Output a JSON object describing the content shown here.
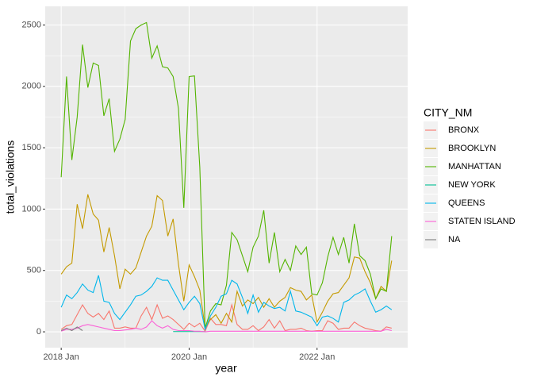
{
  "chart_data": {
    "type": "line",
    "xlabel": "year",
    "ylabel": "total_violations",
    "legend_title": "CITY_NM",
    "legend_position": "right",
    "grid": true,
    "x": [
      "2018-01",
      "2018-02",
      "2018-03",
      "2018-04",
      "2018-05",
      "2018-06",
      "2018-07",
      "2018-08",
      "2018-09",
      "2018-10",
      "2018-11",
      "2018-12",
      "2019-01",
      "2019-02",
      "2019-03",
      "2019-04",
      "2019-05",
      "2019-06",
      "2019-07",
      "2019-08",
      "2019-09",
      "2019-10",
      "2019-11",
      "2019-12",
      "2020-01",
      "2020-02",
      "2020-03",
      "2020-04",
      "2020-05",
      "2020-06",
      "2020-07",
      "2020-08",
      "2020-09",
      "2020-10",
      "2020-11",
      "2020-12",
      "2021-01",
      "2021-02",
      "2021-03",
      "2021-04",
      "2021-05",
      "2021-06",
      "2021-07",
      "2021-08",
      "2021-09",
      "2021-10",
      "2021-11",
      "2021-12",
      "2022-01",
      "2022-02",
      "2022-03",
      "2022-04",
      "2022-05",
      "2022-06",
      "2022-07",
      "2022-08",
      "2022-09",
      "2022-10",
      "2022-11",
      "2022-12",
      "2023-01",
      "2023-02",
      "2023-03"
    ],
    "xlim": [
      "2017-10",
      "2023-06"
    ],
    "xticks": [
      {
        "value": "2018-01",
        "label": "2018 Jan"
      },
      {
        "value": "2020-01",
        "label": "2020 Jan"
      },
      {
        "value": "2022-01",
        "label": "2022 Jan"
      }
    ],
    "ylim": [
      -129,
      2652
    ],
    "yticks": [
      0,
      500,
      1000,
      1500,
      2000,
      2500
    ],
    "series": [
      {
        "name": "BRONX",
        "color": "#F8766D",
        "values": [
          20,
          50,
          60,
          140,
          220,
          150,
          120,
          150,
          100,
          170,
          30,
          30,
          40,
          30,
          30,
          130,
          200,
          100,
          220,
          110,
          130,
          100,
          60,
          20,
          70,
          40,
          70,
          5,
          110,
          60,
          60,
          50,
          220,
          60,
          20,
          20,
          50,
          10,
          40,
          100,
          30,
          90,
          10,
          20,
          20,
          30,
          10,
          5,
          10,
          10,
          90,
          70,
          20,
          30,
          30,
          80,
          50,
          30,
          20,
          10,
          5,
          40,
          30
        ]
      },
      {
        "name": "BROOKLYN",
        "color": "#C49A00",
        "values": [
          470,
          530,
          560,
          1040,
          840,
          1120,
          960,
          910,
          650,
          850,
          620,
          350,
          510,
          470,
          520,
          650,
          780,
          860,
          1110,
          1070,
          780,
          920,
          550,
          250,
          545,
          450,
          340,
          30,
          100,
          140,
          70,
          150,
          80,
          330,
          210,
          260,
          230,
          280,
          200,
          270,
          200,
          250,
          280,
          360,
          340,
          330,
          260,
          300,
          80,
          160,
          250,
          310,
          320,
          380,
          440,
          610,
          600,
          490,
          400,
          270,
          370,
          330,
          580
        ]
      },
      {
        "name": "MANHATTAN",
        "color": "#53B400",
        "values": [
          1260,
          2080,
          1400,
          1750,
          2340,
          1990,
          2190,
          2170,
          1760,
          1900,
          1470,
          1570,
          1730,
          2370,
          2470,
          2500,
          2520,
          2230,
          2330,
          2160,
          2150,
          2080,
          1820,
          1010,
          2080,
          2085,
          1340,
          30,
          170,
          230,
          220,
          380,
          810,
          750,
          620,
          490,
          690,
          780,
          990,
          560,
          810,
          490,
          590,
          500,
          700,
          630,
          690,
          310,
          300,
          400,
          610,
          770,
          630,
          770,
          560,
          880,
          620,
          580,
          470,
          270,
          350,
          330,
          780
        ]
      },
      {
        "name": "NEW YORK",
        "color": "#00C094",
        "values": [
          null,
          null,
          null,
          null,
          null,
          null,
          null,
          null,
          null,
          null,
          null,
          null,
          null,
          null,
          null,
          null,
          null,
          null,
          null,
          null,
          null,
          2,
          2,
          2,
          2,
          2,
          2,
          2,
          null,
          null,
          null,
          null,
          null,
          null,
          null,
          null,
          null,
          null,
          null,
          null,
          null,
          null,
          null,
          null,
          null,
          null,
          null,
          null,
          null,
          null,
          null,
          null,
          null,
          null,
          null,
          null,
          null,
          null,
          null,
          null,
          null,
          null,
          null
        ]
      },
      {
        "name": "QUEENS",
        "color": "#00B6EB",
        "values": [
          200,
          300,
          270,
          320,
          390,
          340,
          320,
          460,
          250,
          240,
          150,
          100,
          160,
          220,
          290,
          300,
          330,
          370,
          440,
          420,
          420,
          340,
          260,
          180,
          240,
          290,
          230,
          20,
          130,
          200,
          290,
          310,
          420,
          390,
          280,
          150,
          300,
          160,
          240,
          210,
          190,
          200,
          170,
          330,
          170,
          160,
          140,
          120,
          50,
          120,
          130,
          110,
          80,
          240,
          260,
          300,
          320,
          350,
          250,
          160,
          180,
          210,
          180
        ]
      },
      {
        "name": "STATEN ISLAND",
        "color": "#FB61D7",
        "values": [
          5,
          20,
          20,
          30,
          50,
          60,
          50,
          40,
          30,
          20,
          10,
          10,
          15,
          20,
          30,
          20,
          40,
          90,
          50,
          30,
          50,
          20,
          10,
          10,
          10,
          5,
          5,
          0,
          5,
          5,
          5,
          5,
          5,
          5,
          5,
          5,
          5,
          5,
          5,
          5,
          5,
          5,
          5,
          5,
          5,
          5,
          5,
          5,
          5,
          5,
          5,
          5,
          5,
          5,
          5,
          5,
          5,
          5,
          5,
          5,
          5,
          20,
          10
        ]
      },
      {
        "name": "NA",
        "color": "#7F7F7F",
        "values": [
          10,
          30,
          10,
          40,
          10,
          null,
          null,
          null,
          null,
          null,
          null,
          null,
          null,
          null,
          null,
          null,
          null,
          null,
          null,
          null,
          null,
          null,
          null,
          null,
          null,
          null,
          null,
          null,
          null,
          null,
          null,
          null,
          null,
          null,
          null,
          null,
          null,
          null,
          null,
          null,
          null,
          null,
          null,
          null,
          null,
          null,
          null,
          null,
          null,
          null,
          null,
          null,
          null,
          null,
          null,
          null,
          null,
          null,
          null,
          null,
          null,
          null,
          null
        ]
      }
    ]
  }
}
